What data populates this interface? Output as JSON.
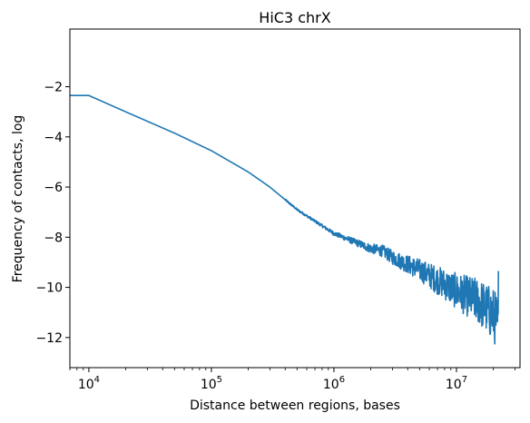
{
  "chart_data": {
    "type": "line",
    "title": "HiC3 chrX",
    "xlabel": "Distance between regions, bases",
    "ylabel": "Frequency of contacts, log",
    "x_scale": "log",
    "xlim": [
      7000,
      33000000
    ],
    "ylim": [
      -13.2,
      0.3
    ],
    "x_ticks": [
      {
        "base": "10",
        "exp": "4",
        "value": 10000
      },
      {
        "base": "10",
        "exp": "5",
        "value": 100000
      },
      {
        "base": "10",
        "exp": "6",
        "value": 1000000
      },
      {
        "base": "10",
        "exp": "7",
        "value": 10000000
      }
    ],
    "y_ticks": [
      -2,
      -4,
      -6,
      -8,
      -10,
      -12
    ],
    "y_tick_labels": [
      "−2",
      "−4",
      "−6",
      "−8",
      "−10",
      "−12"
    ],
    "grid": false,
    "legend": "none",
    "series": [
      {
        "color": "#1f77b4",
        "x": [
          7000,
          10000,
          20000,
          50000,
          100000,
          200000,
          300000,
          500000,
          1000000,
          2000000,
          2500000,
          3000000,
          5000000,
          10000000,
          15000000,
          20000000,
          22000000
        ],
        "y": [
          -2.35,
          -2.35,
          -3.0,
          -3.85,
          -4.55,
          -5.4,
          -6.0,
          -6.9,
          -7.85,
          -8.45,
          -8.55,
          -8.8,
          -9.3,
          -10.15,
          -10.55,
          -11.1,
          -11.5
        ]
      }
    ]
  }
}
